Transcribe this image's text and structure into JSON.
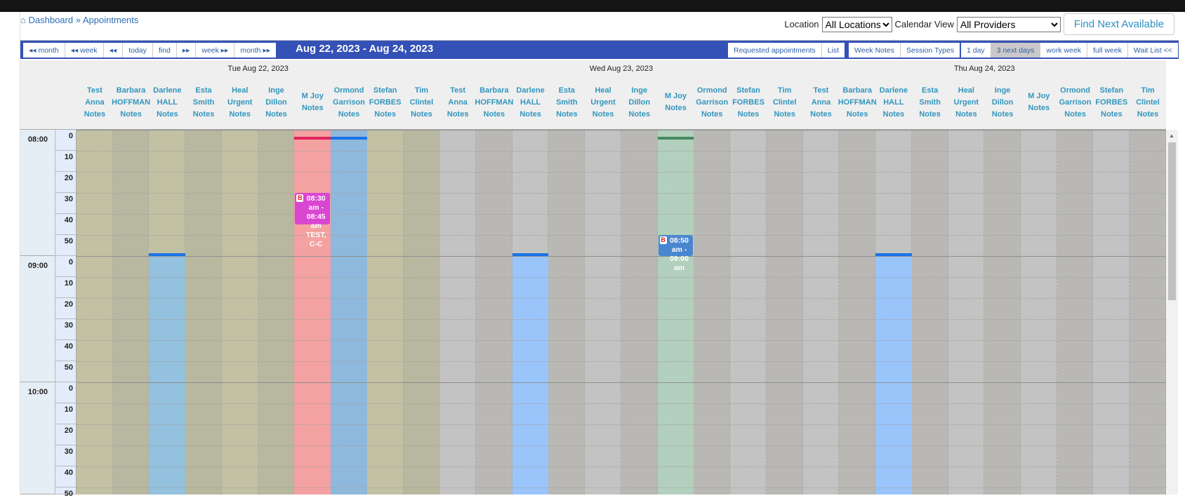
{
  "breadcrumb": {
    "home": "Dashboard",
    "separator": "»",
    "current": "Appointments"
  },
  "filters": {
    "location_label": "Location",
    "location_value": "All Locations",
    "view_label": "Calendar View",
    "view_value": "All Providers",
    "find_next": "Find Next Available"
  },
  "nav": [
    "◂◂ month",
    "◂◂ week",
    "◂◂",
    "today",
    "find",
    "▸▸",
    "week ▸▸",
    "month ▸▸"
  ],
  "range_title": "Aug 22, 2023 - Aug 24, 2023",
  "right_tools": {
    "group1": [
      "Requested appointments",
      "List"
    ],
    "group2": [
      "Week Notes",
      "Session Types"
    ],
    "group3": [
      "1 day",
      "3 next days",
      "work week",
      "full week",
      "Wait List <<"
    ],
    "selected_view": "3 next days"
  },
  "days": [
    {
      "label": "Tue Aug 22, 2023",
      "providers": [
        "Test Anna Notes",
        "Barbara HOFFMAN Notes",
        "Darlene HALL Notes",
        "Esta Smith Notes",
        "Heal Urgent Notes",
        "Inge Dillon Notes",
        "M Joy Notes",
        "Ormond Garrison Notes",
        "Stefan FORBES Notes",
        "Tim Clintel Notes"
      ]
    },
    {
      "label": "Wed Aug 23, 2023",
      "providers": [
        "Test Anna Notes",
        "Barbara HOFFMAN Notes",
        "Darlene HALL Notes",
        "Esta Smith Notes",
        "Heal Urgent Notes",
        "Inge Dillon Notes",
        "M Joy Notes",
        "Ormond Garrison Notes",
        "Stefan FORBES Notes",
        "Tim Clintel Notes"
      ]
    },
    {
      "label": "Thu Aug 24, 2023",
      "providers": [
        "Test Anna Notes",
        "Barbara HOFFMAN Notes",
        "Darlene HALL Notes",
        "Esta Smith Notes",
        "Heal Urgent Notes",
        "Inge Dillon Notes",
        "M Joy Notes",
        "Ormond Garrison Notes",
        "Stefan FORBES Notes",
        "Tim Clintel Notes"
      ]
    }
  ],
  "hours": [
    "08:00",
    "09:00",
    "10:00"
  ],
  "minutes": [
    "0",
    "10",
    "20",
    "30",
    "40",
    "50"
  ],
  "colors": {
    "day1_a": "#c2c1a3",
    "day1_b": "#b8b79f",
    "day_other_a": "#c3c3c3",
    "day_other_b": "#b9b8b4"
  },
  "availability": [
    {
      "col": 2,
      "start": "09:00",
      "color": "#93c1de",
      "bar": "#1a73e8"
    },
    {
      "col": 6,
      "start": "08:00",
      "color": "#f4a1a1",
      "bar": "#e0245e"
    },
    {
      "col": 7,
      "start": "08:00",
      "color": "#8fb9dc",
      "bar": "#1a73e8"
    },
    {
      "col": 12,
      "start": "09:00",
      "color": "#99c5fa",
      "bar": "#1a73e8"
    },
    {
      "col": 16,
      "start": "08:00",
      "color": "#b2d0bd",
      "bar": "#468a5e"
    },
    {
      "col": 22,
      "start": "09:00",
      "color": "#99c5fa",
      "bar": "#1a73e8"
    }
  ],
  "appointments": [
    {
      "col": 6,
      "start": "08:30",
      "end": "08:45",
      "badge": "B",
      "text": "08:30 am - 08:45 am TEST, C-C",
      "color": "#d946d0"
    },
    {
      "col": 16,
      "start": "08:50",
      "end": "09:00",
      "badge": "B",
      "text": "08:50 am - 09:00 am",
      "color": "#4a86d0"
    }
  ]
}
